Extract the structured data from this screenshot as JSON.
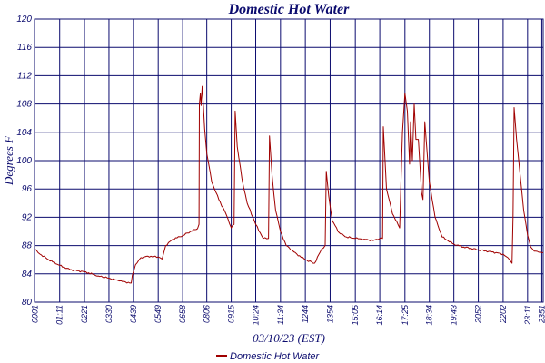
{
  "colors": {
    "grid": "#0b0b6e",
    "series": "#a00000",
    "text": "#0b0b6e",
    "background": "#ffffff"
  },
  "chart_data": {
    "type": "line",
    "title": "Domestic Hot Water",
    "xlabel": "03/10/23 (EST)",
    "ylabel": "Degrees F",
    "ylim": [
      80,
      120
    ],
    "yticks": [
      80,
      84,
      88,
      92,
      96,
      100,
      104,
      108,
      112,
      116,
      120
    ],
    "xlim": [
      "00:00",
      "23:55"
    ],
    "xticks": [
      "00:01",
      "01:11",
      "02:21",
      "03:30",
      "04:39",
      "05:49",
      "06:58",
      "08:06",
      "09:15",
      "10:24",
      "11:34",
      "12:44",
      "13:54",
      "15:05",
      "16:14",
      "17:25",
      "18:34",
      "19:43",
      "20:52",
      "22:02",
      "23:11",
      "23:51"
    ],
    "xtick_labels": [
      "0001",
      "01:11",
      "0221",
      "0330",
      "0439",
      "0549",
      "0658",
      "0806",
      "0915",
      "10:24",
      "11:34",
      "1244",
      "1354",
      "15:05",
      "16:14",
      "17:25",
      "18:34",
      "19:43",
      "2052",
      "2202",
      "23:11",
      "2351"
    ],
    "grid": true,
    "legend": {
      "position": "bottom-center",
      "entries": [
        "Domestic Hot Water"
      ]
    },
    "series": [
      {
        "name": "Domestic Hot Water",
        "points": [
          [
            "00:00",
            87.5
          ],
          [
            "00:15",
            86.8
          ],
          [
            "00:40",
            86.0
          ],
          [
            "01:11",
            85.2
          ],
          [
            "01:40",
            84.6
          ],
          [
            "02:21",
            84.3
          ],
          [
            "03:00",
            83.7
          ],
          [
            "03:30",
            83.4
          ],
          [
            "04:00",
            83.0
          ],
          [
            "04:33",
            82.7
          ],
          [
            "04:36",
            83.8
          ],
          [
            "04:45",
            85.3
          ],
          [
            "05:00",
            86.3
          ],
          [
            "05:20",
            86.5
          ],
          [
            "05:49",
            86.4
          ],
          [
            "06:00",
            86.1
          ],
          [
            "06:10",
            88.0
          ],
          [
            "06:30",
            88.9
          ],
          [
            "06:58",
            89.4
          ],
          [
            "07:20",
            90.0
          ],
          [
            "07:40",
            90.4
          ],
          [
            "07:44",
            91.0
          ],
          [
            "07:45",
            108.0
          ],
          [
            "07:48",
            109.5
          ],
          [
            "07:50",
            107.8
          ],
          [
            "07:53",
            110.5
          ],
          [
            "07:56",
            108.0
          ],
          [
            "08:00",
            104.5
          ],
          [
            "08:06",
            101.0
          ],
          [
            "08:20",
            97.0
          ],
          [
            "08:40",
            94.5
          ],
          [
            "09:00",
            92.5
          ],
          [
            "09:15",
            90.5
          ],
          [
            "09:23",
            91.0
          ],
          [
            "09:26",
            107.0
          ],
          [
            "09:32",
            102.0
          ],
          [
            "09:45",
            97.5
          ],
          [
            "10:00",
            94.0
          ],
          [
            "10:24",
            91.0
          ],
          [
            "10:45",
            89.0
          ],
          [
            "11:00",
            89.0
          ],
          [
            "11:03",
            103.5
          ],
          [
            "11:10",
            98.0
          ],
          [
            "11:20",
            93.0
          ],
          [
            "11:34",
            90.0
          ],
          [
            "11:50",
            88.0
          ],
          [
            "12:20",
            86.8
          ],
          [
            "12:44",
            86.0
          ],
          [
            "13:10",
            85.5
          ],
          [
            "13:30",
            87.5
          ],
          [
            "13:40",
            88.0
          ],
          [
            "13:43",
            98.5
          ],
          [
            "13:50",
            95.0
          ],
          [
            "14:00",
            91.5
          ],
          [
            "14:20",
            89.8
          ],
          [
            "14:40",
            89.2
          ],
          [
            "15:05",
            89.0
          ],
          [
            "15:30",
            88.9
          ],
          [
            "15:55",
            88.7
          ],
          [
            "16:14",
            89.0
          ],
          [
            "16:22",
            89.0
          ],
          [
            "16:24",
            104.8
          ],
          [
            "16:33",
            96.0
          ],
          [
            "16:50",
            92.5
          ],
          [
            "17:10",
            90.5
          ],
          [
            "17:18",
            104.0
          ],
          [
            "17:25",
            109.5
          ],
          [
            "17:32",
            107.0
          ],
          [
            "17:38",
            99.5
          ],
          [
            "17:41",
            105.5
          ],
          [
            "17:46",
            100.0
          ],
          [
            "17:51",
            108.0
          ],
          [
            "17:56",
            103.0
          ],
          [
            "18:03",
            103.0
          ],
          [
            "18:12",
            95.5
          ],
          [
            "18:16",
            94.5
          ],
          [
            "18:21",
            105.5
          ],
          [
            "18:34",
            97.0
          ],
          [
            "18:50",
            92.0
          ],
          [
            "19:10",
            89.2
          ],
          [
            "19:43",
            88.2
          ],
          [
            "20:10",
            87.8
          ],
          [
            "20:52",
            87.4
          ],
          [
            "21:30",
            87.1
          ],
          [
            "22:02",
            86.8
          ],
          [
            "22:20",
            86.0
          ],
          [
            "22:27",
            85.5
          ],
          [
            "22:30",
            92.0
          ],
          [
            "22:33",
            107.5
          ],
          [
            "22:40",
            103.0
          ],
          [
            "22:50",
            98.0
          ],
          [
            "23:00",
            93.0
          ],
          [
            "23:11",
            89.5
          ],
          [
            "23:20",
            87.8
          ],
          [
            "23:30",
            87.2
          ],
          [
            "23:51",
            87.0
          ],
          [
            "23:55",
            87.0
          ]
        ]
      }
    ]
  }
}
